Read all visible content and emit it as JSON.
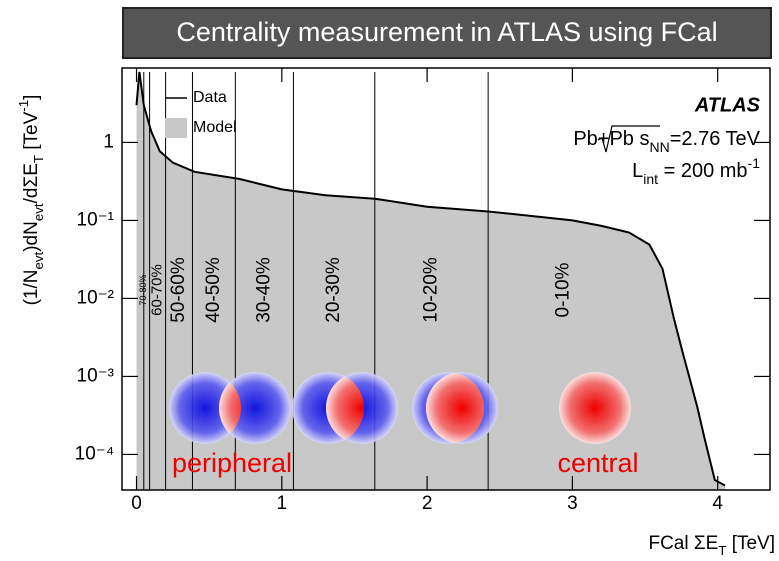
{
  "chart_data": {
    "type": "line",
    "title": "Centrality measurement in ATLAS using FCal",
    "x_label": [
      "FCal ΣE",
      "T",
      " [TeV]"
    ],
    "y_label": [
      "(1/N",
      "evt",
      ")dN",
      "evt",
      "/dΣE",
      "T",
      " [TeV",
      "-1",
      "]"
    ],
    "x": [
      0.0,
      0.02,
      0.05,
      0.1,
      0.16,
      0.25,
      0.4,
      0.71,
      1.0,
      1.3,
      1.64,
      2.0,
      2.42,
      2.8,
      3.0,
      3.2,
      3.39,
      3.53,
      3.62,
      3.7,
      3.76,
      3.81,
      3.86,
      3.91,
      3.98,
      4.05
    ],
    "series": [
      {
        "name": "Model",
        "color": "#c8c8c8",
        "style": "area",
        "values": [
          3,
          8,
          3,
          1.4,
          0.77,
          0.55,
          0.42,
          0.34,
          0.25,
          0.21,
          0.19,
          0.15,
          0.13,
          0.11,
          0.1,
          0.085,
          0.07,
          0.049,
          0.024,
          0.0054,
          0.002,
          0.0009,
          0.0004,
          0.00016,
          4.7e-05,
          4e-05
        ]
      },
      {
        "name": "Data",
        "color": "#000000",
        "style": "line",
        "values": [
          3,
          8,
          3,
          1.4,
          0.77,
          0.55,
          0.42,
          0.34,
          0.25,
          0.21,
          0.19,
          0.15,
          0.13,
          0.11,
          0.1,
          0.085,
          0.07,
          0.049,
          0.024,
          0.0054,
          0.002,
          0.0009,
          0.0004,
          0.00016,
          4.7e-05,
          4e-05
        ]
      }
    ],
    "xlim": [
      -0.1,
      4.36
    ],
    "ylim": [
      3.5e-05,
      9
    ],
    "log_y": true,
    "xticks": [
      0,
      1,
      2,
      3,
      4
    ],
    "yticks": [
      {
        "value": 0.0001,
        "label": "10⁻⁴"
      },
      {
        "value": 0.001,
        "label": "10⁻³"
      },
      {
        "value": 0.01,
        "label": "10⁻²"
      },
      {
        "value": 0.1,
        "label": "10⁻¹"
      },
      1
    ],
    "centrality": {
      "labels": [
        "0-10%",
        "10-20%",
        "20-30%",
        "30-40%",
        "40-50%",
        "50-60%",
        "60-70%",
        "70-80%"
      ],
      "boundaries": [
        2.42,
        1.64,
        1.08,
        0.68,
        0.385,
        0.2,
        0.09,
        0.05
      ]
    },
    "annotations": {
      "experiment": "ATLAS",
      "system": [
        "Pb+Pb ",
        "s",
        "NN",
        "=2.76 TeV"
      ],
      "luminosity": [
        "L",
        "int",
        " = 200 mb",
        "-1"
      ],
      "peripheral": "peripheral",
      "central": "central"
    }
  }
}
